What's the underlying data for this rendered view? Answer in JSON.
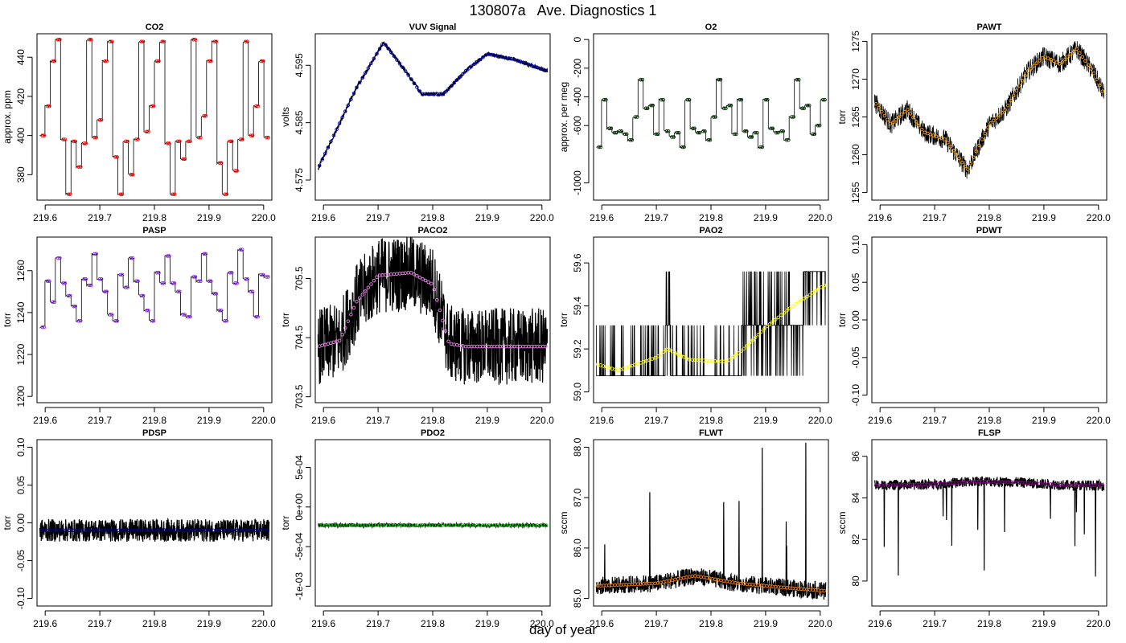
{
  "figure": {
    "title": "130807a   Ave. Diagnostics 1",
    "xlabel": "day of year"
  },
  "chart_data": [
    {
      "type": "line",
      "title": "CO2",
      "ylabel": "approx. ppm",
      "xlim": [
        219.585,
        220.015
      ],
      "ylim": [
        367,
        452
      ],
      "xticks": [
        "219.6",
        "219.7",
        "219.8",
        "219.9",
        "220.0"
      ],
      "yticks": [
        "380",
        "400",
        "420",
        "440"
      ],
      "ytick_values": [
        380,
        400,
        420,
        440
      ],
      "noise": "low",
      "raw_color": "#000000",
      "mean_color": "#ff0000",
      "levels": [
        400,
        415,
        438,
        449,
        398,
        370,
        397,
        384,
        396,
        449,
        399,
        408,
        438,
        448,
        389,
        370,
        397,
        380,
        398,
        448,
        402,
        415,
        438,
        448,
        396,
        370,
        397,
        388,
        397,
        449,
        399,
        410,
        438,
        448,
        386,
        370,
        397,
        382,
        398,
        448,
        400,
        415,
        438,
        399
      ]
    },
    {
      "type": "line",
      "title": "VUV Signal",
      "ylabel": "volts",
      "xlim": [
        219.585,
        220.015
      ],
      "ylim": [
        4.5715,
        4.6005
      ],
      "xticks": [
        "219.6",
        "219.7",
        "219.8",
        "219.9",
        "220.0"
      ],
      "yticks": [
        "4.575",
        "4.585",
        "4.595"
      ],
      "ytick_values": [
        4.575,
        4.585,
        4.595
      ],
      "noise": "thick",
      "raw_color": "#000000",
      "mean_color": "#0000cc",
      "trend": [
        [
          219.59,
          4.577
        ],
        [
          219.62,
          4.583
        ],
        [
          219.66,
          4.591
        ],
        [
          219.71,
          4.599
        ],
        [
          219.75,
          4.594
        ],
        [
          219.78,
          4.59
        ],
        [
          219.82,
          4.59
        ],
        [
          219.86,
          4.594
        ],
        [
          219.9,
          4.597
        ],
        [
          219.95,
          4.596
        ],
        [
          220.01,
          4.594
        ]
      ]
    },
    {
      "type": "line",
      "title": "O2",
      "ylabel": "approx. per meg",
      "xlim": [
        219.585,
        220.015
      ],
      "ylim": [
        -1120,
        40
      ],
      "xticks": [
        "219.6",
        "219.7",
        "219.8",
        "219.9",
        "220.0"
      ],
      "yticks": [
        "-1000",
        "-600",
        "-400",
        "-200",
        "0"
      ],
      "ytick_values": [
        -1000,
        -600,
        -400,
        -200,
        0
      ],
      "noise": "low",
      "raw_color": "#000000",
      "mean_color": "#003300",
      "levels": [
        -750,
        -420,
        -620,
        -650,
        -640,
        -660,
        -700,
        -540,
        -280,
        -480,
        -460,
        -660,
        -420,
        -640,
        -680,
        -650,
        -750,
        -420,
        -620,
        -650,
        -640,
        -700,
        -540,
        -280,
        -480,
        -460,
        -660,
        -420,
        -640,
        -680,
        -650,
        -750,
        -420,
        -620,
        -650,
        -640,
        -700,
        -540,
        -280,
        -480,
        -460,
        -660,
        -600,
        -420
      ]
    },
    {
      "type": "line",
      "title": "PAWT",
      "ylabel": "torr",
      "xlim": [
        219.585,
        220.015
      ],
      "ylim": [
        1254,
        1276
      ],
      "xticks": [
        "219.6",
        "219.7",
        "219.8",
        "219.9",
        "220.0"
      ],
      "yticks": [
        "1255",
        "1260",
        "1265",
        "1270",
        "1275"
      ],
      "ytick_values": [
        1255,
        1260,
        1265,
        1270,
        1275
      ],
      "noise": "medium",
      "raw_color": "#000000",
      "mean_color": "#ffa500",
      "trend": [
        [
          219.59,
          1267
        ],
        [
          219.62,
          1264
        ],
        [
          219.65,
          1266
        ],
        [
          219.68,
          1263
        ],
        [
          219.72,
          1262
        ],
        [
          219.76,
          1258
        ],
        [
          219.8,
          1264
        ],
        [
          219.83,
          1266
        ],
        [
          219.87,
          1271
        ],
        [
          219.9,
          1273
        ],
        [
          219.93,
          1272
        ],
        [
          219.96,
          1274
        ],
        [
          219.99,
          1271
        ],
        [
          220.01,
          1268
        ]
      ]
    },
    {
      "type": "line",
      "title": "PASP",
      "ylabel": "torr",
      "xlim": [
        219.585,
        220.015
      ],
      "ylim": [
        1197,
        1276
      ],
      "xticks": [
        "219.6",
        "219.7",
        "219.8",
        "219.9",
        "220.0"
      ],
      "yticks": [
        "1200",
        "1220",
        "1240",
        "1260"
      ],
      "ytick_values": [
        1200,
        1220,
        1240,
        1260
      ],
      "noise": "low",
      "raw_color": "#000000",
      "mean_color": "#8a2be2",
      "levels": [
        1233,
        1255,
        1245,
        1266,
        1254,
        1248,
        1243,
        1236,
        1256,
        1253,
        1268,
        1256,
        1250,
        1239,
        1236,
        1258,
        1252,
        1266,
        1255,
        1248,
        1241,
        1236,
        1259,
        1254,
        1267,
        1254,
        1250,
        1239,
        1238,
        1257,
        1255,
        1268,
        1255,
        1249,
        1241,
        1236,
        1259,
        1254,
        1270,
        1256,
        1250,
        1238,
        1258,
        1257
      ]
    },
    {
      "type": "scatter",
      "title": "PACO2",
      "ylabel": "torr",
      "xlim": [
        219.585,
        220.015
      ],
      "ylim": [
        703.4,
        706.2
      ],
      "xticks": [
        "219.6",
        "219.7",
        "219.8",
        "219.9",
        "220.0"
      ],
      "yticks": [
        "703.5",
        "704.5",
        "705.5"
      ],
      "ytick_values": [
        703.5,
        704.5,
        705.5
      ],
      "noise": "band",
      "band_width": 1.3,
      "raw_color": "#000000",
      "mean_color": "#ee82ee",
      "trend": [
        [
          219.59,
          704.35
        ],
        [
          219.63,
          704.45
        ],
        [
          219.66,
          705.1
        ],
        [
          219.7,
          705.55
        ],
        [
          219.76,
          705.6
        ],
        [
          219.8,
          705.4
        ],
        [
          219.83,
          704.4
        ],
        [
          219.86,
          704.35
        ],
        [
          219.92,
          704.35
        ],
        [
          220.01,
          704.35
        ]
      ]
    },
    {
      "type": "scatter",
      "title": "PAO2",
      "ylabel": "torr",
      "xlim": [
        219.585,
        220.015
      ],
      "ylim": [
        58.95,
        59.72
      ],
      "xticks": [
        "219.6",
        "219.7",
        "219.8",
        "219.9",
        "220.0"
      ],
      "yticks": [
        "59.0",
        "59.2",
        "59.4",
        "59.6"
      ],
      "ytick_values": [
        59.0,
        59.2,
        59.4,
        59.6
      ],
      "noise": "digital",
      "digital_levels": [
        59.075,
        59.31,
        59.56
      ],
      "raw_color": "#000000",
      "mean_color": "#ffff00",
      "trend": [
        [
          219.59,
          59.13
        ],
        [
          219.63,
          59.1
        ],
        [
          219.7,
          59.16
        ],
        [
          219.72,
          59.2
        ],
        [
          219.76,
          59.15
        ],
        [
          219.83,
          59.14
        ],
        [
          219.86,
          59.2
        ],
        [
          219.9,
          59.3
        ],
        [
          219.95,
          59.4
        ],
        [
          220.01,
          59.5
        ]
      ]
    },
    {
      "type": "line",
      "title": "PDWT",
      "ylabel": "torr",
      "xlim": [
        219.585,
        220.015
      ],
      "ylim": [
        -0.11,
        0.11
      ],
      "xticks": [
        "219.6",
        "219.7",
        "219.8",
        "219.9",
        "220.0"
      ],
      "yticks": [
        "-0.10",
        "-0.05",
        "0.00",
        "0.05",
        "0.10"
      ],
      "ytick_values": [
        -0.1,
        -0.05,
        0,
        0.05,
        0.1
      ],
      "noise": "none",
      "raw_color": "#000000",
      "mean_color": "#000000"
    },
    {
      "type": "line",
      "title": "PDSP",
      "ylabel": "torr",
      "xlim": [
        219.585,
        220.015
      ],
      "ylim": [
        -0.11,
        0.11
      ],
      "xticks": [
        "219.6",
        "219.7",
        "219.8",
        "219.9",
        "220.0"
      ],
      "yticks": [
        "-0.10",
        "-0.05",
        "0.00",
        "0.05",
        "0.10"
      ],
      "ytick_values": [
        -0.1,
        -0.05,
        0,
        0.05,
        0.1
      ],
      "noise": "band",
      "band_width": 0.03,
      "raw_color": "#000000",
      "mean_color": "#00008b",
      "trend": [
        [
          219.59,
          -0.01
        ],
        [
          220.01,
          -0.01
        ]
      ]
    },
    {
      "type": "line",
      "title": "PDO2",
      "ylabel": "torr",
      "xlim": [
        219.585,
        220.015
      ],
      "ylim": [
        -0.00125,
        0.00085
      ],
      "xticks": [
        "219.6",
        "219.7",
        "219.8",
        "219.9",
        "220.0"
      ],
      "yticks": [
        "-1e-03",
        "-5e-04",
        "0e+00",
        "5e-04"
      ],
      "ytick_values": [
        -0.001,
        -0.0005,
        0,
        0.0005
      ],
      "noise": "band",
      "band_width": 5e-05,
      "raw_color": "#000000",
      "mean_color": "#00cc00",
      "trend": [
        [
          219.59,
          -0.00023
        ],
        [
          220.01,
          -0.00023
        ]
      ]
    },
    {
      "type": "line",
      "title": "FLWT",
      "ylabel": "sccm",
      "xlim": [
        219.585,
        220.015
      ],
      "ylim": [
        84.85,
        88.15
      ],
      "xticks": [
        "219.6",
        "219.7",
        "219.8",
        "219.9",
        "220.0"
      ],
      "yticks": [
        "85.0",
        "86.0",
        "87.0",
        "88.0"
      ],
      "ytick_values": [
        85,
        86,
        87,
        88
      ],
      "noise": "band",
      "band_width": 0.35,
      "spikes": "up",
      "raw_color": "#000000",
      "mean_color": "#ff7f00",
      "trend": [
        [
          219.59,
          85.25
        ],
        [
          219.7,
          85.3
        ],
        [
          219.77,
          85.45
        ],
        [
          219.85,
          85.3
        ],
        [
          219.95,
          85.2
        ],
        [
          220.01,
          85.15
        ]
      ]
    },
    {
      "type": "line",
      "title": "FLSP",
      "ylabel": "sccm",
      "xlim": [
        219.585,
        220.015
      ],
      "ylim": [
        78.8,
        86.8
      ],
      "xticks": [
        "219.6",
        "219.7",
        "219.8",
        "219.9",
        "220.0"
      ],
      "yticks": [
        "80",
        "82",
        "84",
        "86"
      ],
      "ytick_values": [
        80,
        82,
        84,
        86
      ],
      "noise": "band",
      "band_width": 0.5,
      "spikes": "down",
      "raw_color": "#000000",
      "mean_color": "#8b008b",
      "trend": [
        [
          219.59,
          84.6
        ],
        [
          219.7,
          84.65
        ],
        [
          219.78,
          84.8
        ],
        [
          219.85,
          84.75
        ],
        [
          219.95,
          84.6
        ],
        [
          220.01,
          84.6
        ]
      ]
    }
  ]
}
